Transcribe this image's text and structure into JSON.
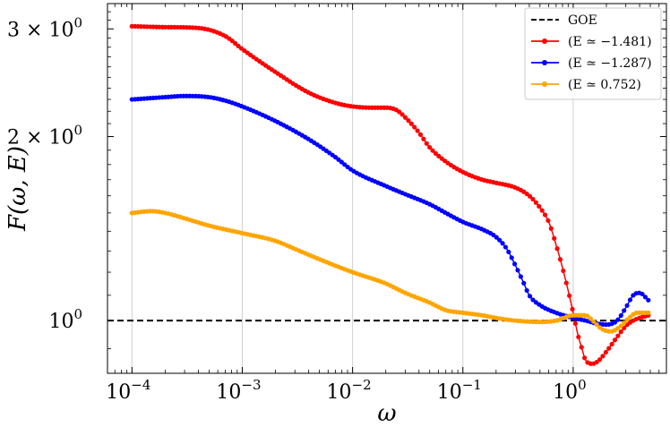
{
  "chart_data": {
    "type": "line",
    "x_scale": "log",
    "y_scale": "log",
    "xlim": [
      6e-05,
      7
    ],
    "ylim": [
      0.82,
      3.3
    ],
    "grid": "x-major-only",
    "legend_position": "top-right",
    "xlabel": "ω",
    "ylabel": "F(ω, E)",
    "x_ticks": [
      {
        "value": 0.0001,
        "base": "10",
        "exp": "−4"
      },
      {
        "value": 0.001,
        "base": "10",
        "exp": "−3"
      },
      {
        "value": 0.01,
        "base": "10",
        "exp": "−2"
      },
      {
        "value": 0.1,
        "base": "10",
        "exp": "−1"
      },
      {
        "value": 1,
        "base": "10",
        "exp": "0"
      }
    ],
    "y_ticks": [
      {
        "value": 1,
        "base": "10",
        "exp": "0"
      },
      {
        "value": 2,
        "base": "2 × 10",
        "exp": "0"
      },
      {
        "value": 3,
        "base": "3 × 10",
        "exp": "0"
      }
    ],
    "reference_line": {
      "name": "GOE",
      "value": 1.0,
      "color": "#000000",
      "style": "dashed"
    },
    "series": [
      {
        "name": "(E ≃ −1.481)",
        "color": "#ff0000",
        "points": [
          [
            0.0001,
            3.03
          ],
          [
            0.0002,
            3.02
          ],
          [
            0.0004,
            3.01
          ],
          [
            0.0007,
            2.92
          ],
          [
            0.001,
            2.78
          ],
          [
            0.002,
            2.55
          ],
          [
            0.004,
            2.36
          ],
          [
            0.007,
            2.27
          ],
          [
            0.01,
            2.24
          ],
          [
            0.015,
            2.23
          ],
          [
            0.02,
            2.23
          ],
          [
            0.025,
            2.21
          ],
          [
            0.03,
            2.15
          ],
          [
            0.04,
            2.03
          ],
          [
            0.05,
            1.92
          ],
          [
            0.07,
            1.82
          ],
          [
            0.1,
            1.75
          ],
          [
            0.15,
            1.7
          ],
          [
            0.2,
            1.68
          ],
          [
            0.3,
            1.65
          ],
          [
            0.4,
            1.6
          ],
          [
            0.5,
            1.53
          ],
          [
            0.6,
            1.45
          ],
          [
            0.7,
            1.33
          ],
          [
            0.8,
            1.22
          ],
          [
            0.9,
            1.12
          ],
          [
            1.0,
            1.03
          ],
          [
            1.1,
            0.95
          ],
          [
            1.2,
            0.9
          ],
          [
            1.3,
            0.86
          ],
          [
            1.5,
            0.85
          ],
          [
            1.7,
            0.86
          ],
          [
            2.0,
            0.89
          ],
          [
            2.5,
            0.94
          ],
          [
            3.0,
            0.98
          ],
          [
            3.5,
            1.0
          ],
          [
            4.0,
            1.01
          ],
          [
            4.8,
            1.02
          ]
        ]
      },
      {
        "name": "(E ≃ −1.287)",
        "color": "#0000ff",
        "points": [
          [
            0.0001,
            2.3
          ],
          [
            0.0002,
            2.32
          ],
          [
            0.0003,
            2.33
          ],
          [
            0.0005,
            2.32
          ],
          [
            0.0007,
            2.29
          ],
          [
            0.001,
            2.24
          ],
          [
            0.002,
            2.12
          ],
          [
            0.004,
            1.98
          ],
          [
            0.007,
            1.85
          ],
          [
            0.01,
            1.76
          ],
          [
            0.02,
            1.66
          ],
          [
            0.03,
            1.61
          ],
          [
            0.05,
            1.55
          ],
          [
            0.07,
            1.5
          ],
          [
            0.1,
            1.45
          ],
          [
            0.15,
            1.41
          ],
          [
            0.2,
            1.37
          ],
          [
            0.25,
            1.31
          ],
          [
            0.3,
            1.23
          ],
          [
            0.35,
            1.16
          ],
          [
            0.4,
            1.1
          ],
          [
            0.5,
            1.06
          ],
          [
            0.7,
            1.03
          ],
          [
            1.0,
            1.01
          ],
          [
            1.3,
            1.0
          ],
          [
            1.6,
            0.99
          ],
          [
            2.0,
            0.985
          ],
          [
            2.5,
            1.0
          ],
          [
            3.0,
            1.05
          ],
          [
            3.5,
            1.1
          ],
          [
            4.0,
            1.11
          ],
          [
            4.8,
            1.08
          ]
        ]
      },
      {
        "name": "(E ≃ 0.752)",
        "color": "#ffa500",
        "points": [
          [
            0.0001,
            1.5
          ],
          [
            0.00015,
            1.51
          ],
          [
            0.0002,
            1.5
          ],
          [
            0.0003,
            1.47
          ],
          [
            0.0005,
            1.43
          ],
          [
            0.001,
            1.39
          ],
          [
            0.002,
            1.35
          ],
          [
            0.003,
            1.31
          ],
          [
            0.005,
            1.26
          ],
          [
            0.01,
            1.2
          ],
          [
            0.02,
            1.15
          ],
          [
            0.03,
            1.11
          ],
          [
            0.05,
            1.07
          ],
          [
            0.07,
            1.04
          ],
          [
            0.1,
            1.03
          ],
          [
            0.15,
            1.02
          ],
          [
            0.2,
            1.01
          ],
          [
            0.3,
            1.0
          ],
          [
            0.5,
            0.995
          ],
          [
            0.7,
            1.0
          ],
          [
            1.0,
            1.02
          ],
          [
            1.3,
            1.02
          ],
          [
            1.5,
            1.0
          ],
          [
            1.8,
            0.97
          ],
          [
            2.2,
            0.96
          ],
          [
            2.7,
            0.98
          ],
          [
            3.2,
            1.01
          ],
          [
            3.8,
            1.03
          ],
          [
            4.8,
            1.03
          ]
        ]
      }
    ]
  }
}
